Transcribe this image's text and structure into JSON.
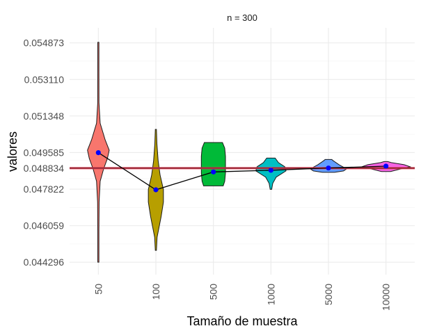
{
  "chart_data": {
    "type": "violin",
    "facet_title": "n = 300",
    "xlabel": "Tamaño de muestra",
    "ylabel": "valores",
    "categories": [
      "50",
      "100",
      "500",
      "1000",
      "5000",
      "10000"
    ],
    "y_ticks": [
      "0.044296",
      "0.046059",
      "0.047822",
      "0.048834",
      "0.049585",
      "0.051348",
      "0.053110",
      "0.054873"
    ],
    "ylim": [
      0.0437,
      0.0556
    ],
    "reference_line": {
      "value": 0.048834,
      "color": "#e8384f"
    },
    "mean_line_color": "#000000",
    "mean_point_color": "#0000ff",
    "series": [
      {
        "category": "50",
        "fill": "#f8766d",
        "min": 0.044296,
        "max": 0.054873,
        "mean": 0.04958,
        "density": [
          [
            0.0443,
            0.02
          ],
          [
            0.0458,
            0.03
          ],
          [
            0.0472,
            0.05
          ],
          [
            0.0482,
            0.12
          ],
          [
            0.0488,
            0.35
          ],
          [
            0.0493,
            0.6
          ],
          [
            0.0497,
            0.72
          ],
          [
            0.0502,
            0.45
          ],
          [
            0.051,
            0.12
          ],
          [
            0.052,
            0.04
          ],
          [
            0.0535,
            0.02
          ],
          [
            0.0549,
            0.015
          ]
        ]
      },
      {
        "category": "100",
        "fill": "#b79f00",
        "min": 0.04487,
        "max": 0.05072,
        "mean": 0.04779,
        "density": [
          [
            0.04487,
            0.03
          ],
          [
            0.0455,
            0.08
          ],
          [
            0.0465,
            0.35
          ],
          [
            0.0472,
            0.5
          ],
          [
            0.0478,
            0.5
          ],
          [
            0.0485,
            0.28
          ],
          [
            0.0492,
            0.15
          ],
          [
            0.05,
            0.07
          ],
          [
            0.0507,
            0.03
          ]
        ]
      },
      {
        "category": "500",
        "fill": "#00ba38",
        "min": 0.04798,
        "max": 0.05007,
        "mean": 0.04865,
        "density": [
          [
            0.04798,
            0.65
          ],
          [
            0.0482,
            0.75
          ],
          [
            0.0486,
            0.8
          ],
          [
            0.049,
            0.8
          ],
          [
            0.0494,
            0.8
          ],
          [
            0.0498,
            0.75
          ],
          [
            0.05007,
            0.6
          ]
        ]
      },
      {
        "category": "1000",
        "fill": "#00bfc4",
        "min": 0.04781,
        "max": 0.04932,
        "mean": 0.04873,
        "density": [
          [
            0.04781,
            0.05
          ],
          [
            0.0481,
            0.12
          ],
          [
            0.0484,
            0.35
          ],
          [
            0.0487,
            1.0
          ],
          [
            0.0489,
            0.92
          ],
          [
            0.0491,
            0.5
          ],
          [
            0.04932,
            0.28
          ]
        ]
      },
      {
        "category": "5000",
        "fill": "#619cff",
        "min": 0.04863,
        "max": 0.04925,
        "mean": 0.04884,
        "density": [
          [
            0.04863,
            0.4
          ],
          [
            0.0487,
            1.0
          ],
          [
            0.0488,
            1.2
          ],
          [
            0.049,
            0.7
          ],
          [
            0.0492,
            0.3
          ],
          [
            0.04925,
            0.22
          ]
        ]
      },
      {
        "category": "10000",
        "fill": "#f564e3",
        "min": 0.04867,
        "max": 0.04915,
        "mean": 0.04893,
        "density": [
          [
            0.04867,
            0.3
          ],
          [
            0.0488,
            1.0
          ],
          [
            0.0489,
            1.6
          ],
          [
            0.049,
            1.2
          ],
          [
            0.0491,
            0.35
          ],
          [
            0.04915,
            0.12
          ]
        ]
      }
    ]
  }
}
